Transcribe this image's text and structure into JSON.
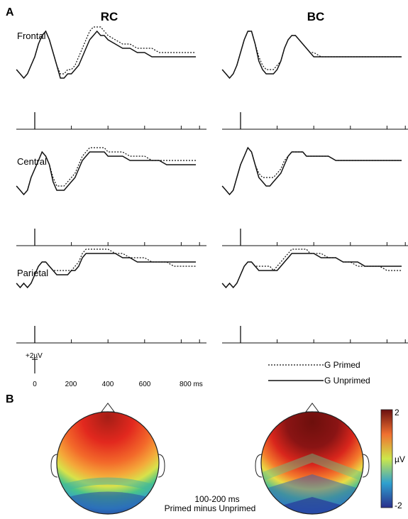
{
  "figure": {
    "panel_a_label": "A",
    "panel_b_label": "B",
    "conditions": [
      "RC",
      "BC"
    ],
    "regions": [
      "Frontal",
      "Central",
      "Parietal"
    ],
    "scale_bar": "+2µV",
    "time_ticks": [
      "0",
      "200",
      "400",
      "600",
      "800 ms"
    ],
    "legend": {
      "primed": "G Primed",
      "unprimed": "G Unprimed"
    },
    "topo_caption": [
      "100-200 ms",
      "Primed minus Unprimed"
    ],
    "colorbar": {
      "max_label": "2",
      "unit_label": "µV",
      "min_label": "-2",
      "colors": [
        "#2a2f8c",
        "#2fa0cf",
        "#cde74a",
        "#f07030",
        "#6a1010"
      ]
    }
  },
  "chart_data": [
    {
      "type": "line",
      "condition": "RC",
      "region": "Frontal",
      "x": [
        -100,
        -80,
        -60,
        -40,
        -20,
        0,
        20,
        40,
        60,
        80,
        100,
        120,
        140,
        160,
        180,
        200,
        220,
        240,
        260,
        280,
        300,
        320,
        340,
        360,
        380,
        400,
        440,
        480,
        520,
        560,
        600,
        640,
        680,
        720,
        760,
        800,
        840,
        880
      ],
      "series": [
        {
          "name": "G Primed",
          "values": [
            0,
            -1,
            -2,
            -1,
            1,
            3,
            6,
            8,
            9,
            7,
            4,
            1,
            -1,
            -1,
            0,
            0,
            1,
            3,
            5,
            7,
            9,
            10,
            10,
            10,
            9,
            8,
            7,
            6,
            6,
            5,
            5,
            5,
            4,
            4,
            4,
            4,
            4,
            4
          ]
        },
        {
          "name": "G Unprimed",
          "values": [
            0,
            -1,
            -2,
            -1,
            1,
            3,
            6,
            8,
            9,
            7,
            4,
            1,
            -2,
            -2,
            -1,
            -1,
            0,
            1,
            3,
            5,
            7,
            8,
            9,
            8,
            8,
            7,
            6,
            5,
            5,
            4,
            4,
            3,
            3,
            3,
            3,
            3,
            3,
            3
          ]
        }
      ]
    },
    {
      "type": "line",
      "condition": "BC",
      "region": "Frontal",
      "x": [
        -100,
        -80,
        -60,
        -40,
        -20,
        0,
        20,
        40,
        60,
        80,
        100,
        120,
        140,
        160,
        180,
        200,
        220,
        240,
        260,
        280,
        300,
        320,
        340,
        360,
        380,
        400,
        440,
        480,
        520,
        560,
        600,
        640,
        680,
        720,
        760,
        800,
        840,
        880
      ],
      "series": [
        {
          "name": "G Primed",
          "values": [
            0,
            -1,
            -2,
            -1,
            1,
            4,
            7,
            9,
            9,
            6,
            3,
            1,
            0,
            0,
            0,
            1,
            2,
            5,
            7,
            8,
            8,
            7,
            6,
            5,
            4,
            4,
            3,
            3,
            3,
            3,
            3,
            3,
            3,
            3,
            3,
            3,
            3,
            3
          ]
        },
        {
          "name": "G Unprimed",
          "values": [
            0,
            -1,
            -2,
            -1,
            1,
            4,
            7,
            9,
            9,
            6,
            2,
            0,
            -1,
            -1,
            -1,
            0,
            2,
            5,
            7,
            8,
            8,
            7,
            6,
            5,
            4,
            3,
            3,
            3,
            3,
            3,
            3,
            3,
            3,
            3,
            3,
            3,
            3,
            3
          ]
        }
      ]
    },
    {
      "type": "line",
      "condition": "RC",
      "region": "Central",
      "x": [
        -100,
        -80,
        -60,
        -40,
        -20,
        0,
        20,
        40,
        60,
        80,
        100,
        120,
        140,
        160,
        180,
        200,
        220,
        240,
        260,
        280,
        300,
        320,
        340,
        360,
        380,
        400,
        440,
        480,
        520,
        560,
        600,
        640,
        680,
        720,
        760,
        800,
        840,
        880
      ],
      "series": [
        {
          "name": "G Primed",
          "values": [
            0,
            -1,
            -2,
            -1,
            2,
            4,
            6,
            8,
            7,
            5,
            2,
            0,
            0,
            0,
            1,
            2,
            3,
            5,
            7,
            8,
            9,
            9,
            9,
            9,
            9,
            8,
            8,
            8,
            7,
            7,
            7,
            6,
            6,
            6,
            6,
            6,
            6,
            6
          ]
        },
        {
          "name": "G Unprimed",
          "values": [
            0,
            -1,
            -2,
            -1,
            2,
            4,
            6,
            8,
            7,
            5,
            1,
            -1,
            -1,
            -1,
            0,
            1,
            2,
            4,
            6,
            7,
            8,
            8,
            8,
            8,
            8,
            7,
            7,
            7,
            6,
            6,
            6,
            6,
            6,
            5,
            5,
            5,
            5,
            5
          ]
        }
      ]
    },
    {
      "type": "line",
      "condition": "BC",
      "region": "Central",
      "x": [
        -100,
        -80,
        -60,
        -40,
        -20,
        0,
        20,
        40,
        60,
        80,
        100,
        120,
        140,
        160,
        180,
        200,
        220,
        240,
        260,
        280,
        300,
        320,
        340,
        360,
        380,
        400,
        440,
        480,
        520,
        560,
        600,
        640,
        680,
        720,
        760,
        800,
        840,
        880
      ],
      "series": [
        {
          "name": "G Primed",
          "values": [
            0,
            -1,
            -2,
            -1,
            2,
            5,
            7,
            9,
            8,
            5,
            3,
            2,
            2,
            2,
            2,
            3,
            4,
            6,
            7,
            8,
            8,
            8,
            8,
            7,
            7,
            7,
            7,
            7,
            6,
            6,
            6,
            6,
            6,
            6,
            6,
            6,
            6,
            6
          ]
        },
        {
          "name": "G Unprimed",
          "values": [
            0,
            -1,
            -2,
            -1,
            2,
            5,
            7,
            9,
            8,
            5,
            2,
            1,
            0,
            0,
            1,
            2,
            3,
            5,
            7,
            8,
            8,
            8,
            8,
            7,
            7,
            7,
            7,
            7,
            6,
            6,
            6,
            6,
            6,
            6,
            6,
            6,
            6,
            6
          ]
        }
      ]
    },
    {
      "type": "line",
      "condition": "RC",
      "region": "Parietal",
      "x": [
        -100,
        -80,
        -60,
        -40,
        -20,
        0,
        20,
        40,
        60,
        80,
        100,
        120,
        140,
        160,
        180,
        200,
        220,
        240,
        260,
        280,
        300,
        320,
        340,
        360,
        380,
        400,
        440,
        480,
        520,
        560,
        600,
        640,
        680,
        720,
        760,
        800,
        840,
        880
      ],
      "series": [
        {
          "name": "G Primed",
          "values": [
            0,
            -1,
            0,
            -1,
            0,
            2,
            4,
            5,
            5,
            4,
            3,
            3,
            3,
            3,
            3,
            3,
            4,
            5,
            7,
            8,
            8,
            8,
            8,
            8,
            8,
            8,
            7,
            7,
            6,
            6,
            6,
            5,
            5,
            5,
            4,
            4,
            4,
            4
          ]
        },
        {
          "name": "G Unprimed",
          "values": [
            0,
            -1,
            0,
            -1,
            0,
            2,
            4,
            5,
            5,
            4,
            3,
            2,
            2,
            2,
            2,
            3,
            3,
            4,
            6,
            7,
            7,
            7,
            7,
            7,
            7,
            7,
            7,
            6,
            6,
            5,
            5,
            5,
            5,
            5,
            5,
            5,
            5,
            5
          ]
        }
      ]
    },
    {
      "type": "line",
      "condition": "BC",
      "region": "Parietal",
      "x": [
        -100,
        -80,
        -60,
        -40,
        -20,
        0,
        20,
        40,
        60,
        80,
        100,
        120,
        140,
        160,
        180,
        200,
        220,
        240,
        260,
        280,
        300,
        320,
        340,
        360,
        380,
        400,
        440,
        480,
        520,
        560,
        600,
        640,
        680,
        720,
        760,
        800,
        840,
        880
      ],
      "series": [
        {
          "name": "G Primed",
          "values": [
            0,
            -1,
            0,
            -1,
            0,
            2,
            4,
            5,
            5,
            4,
            4,
            4,
            4,
            4,
            3,
            4,
            5,
            6,
            7,
            8,
            8,
            8,
            8,
            8,
            7,
            7,
            7,
            6,
            6,
            5,
            5,
            4,
            4,
            4,
            4,
            3,
            3,
            3
          ]
        },
        {
          "name": "G Unprimed",
          "values": [
            0,
            -1,
            0,
            -1,
            0,
            2,
            4,
            5,
            5,
            4,
            3,
            3,
            3,
            3,
            3,
            3,
            4,
            5,
            6,
            7,
            7,
            7,
            7,
            7,
            7,
            7,
            6,
            6,
            6,
            5,
            5,
            5,
            4,
            4,
            4,
            4,
            4,
            4
          ]
        }
      ]
    }
  ]
}
